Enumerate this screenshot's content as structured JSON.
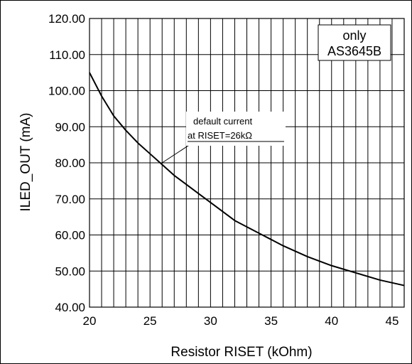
{
  "chart_data": {
    "type": "line",
    "title": "",
    "xlabel": "Resistor RISET (kOhm)",
    "ylabel": "ILED_OUT (mA)",
    "xlim": [
      20,
      46
    ],
    "ylim": [
      40,
      120
    ],
    "x_ticks": [
      20,
      25,
      30,
      35,
      40,
      45
    ],
    "x_tick_labels": [
      "20",
      "25",
      "30",
      "35",
      "40",
      "45"
    ],
    "y_ticks": [
      40,
      50,
      60,
      70,
      80,
      90,
      100,
      110,
      120
    ],
    "y_tick_labels": [
      "40.00",
      "50.00",
      "60.00",
      "70.00",
      "80.00",
      "90.00",
      "100.00",
      "110.00",
      "120.00"
    ],
    "grid": true,
    "series": [
      {
        "color": "#000000",
        "x": [
          20,
          21,
          22,
          23,
          24,
          25,
          26,
          27,
          28,
          29,
          30,
          32,
          34,
          36,
          38,
          40,
          42,
          44,
          46
        ],
        "y": [
          105.0,
          98.5,
          93.0,
          89.0,
          85.5,
          82.5,
          79.5,
          76.5,
          74.0,
          71.5,
          69.0,
          64.0,
          60.5,
          57.0,
          54.0,
          51.5,
          49.5,
          47.5,
          46.0
        ]
      }
    ],
    "annotations": [
      {
        "text_line1": "default current",
        "text_line2": "at RISET=26kΩ",
        "points_to": {
          "x": 26,
          "y": 80
        }
      },
      {
        "text_line1": "only",
        "text_line2": "AS3645B",
        "position": "top-right"
      }
    ]
  }
}
